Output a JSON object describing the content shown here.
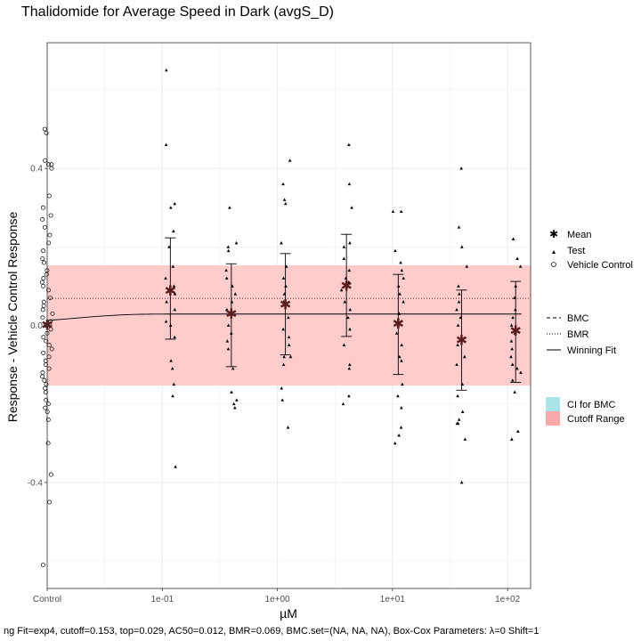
{
  "chart_data": {
    "type": "scatter",
    "title": "Thalidomide for Average Speed in Dark (avgS_D)",
    "xlabel": "µM",
    "ylabel": "Response - Vehicle Control Response",
    "ylim": [
      -0.67,
      0.72
    ],
    "x_log_range": [
      -2.0,
      2.2
    ],
    "x_ticks": [
      {
        "label": "Control",
        "log": -2.0
      },
      {
        "label": "1e-01",
        "log": -1.0
      },
      {
        "label": "1e+00",
        "log": 0.0
      },
      {
        "label": "1e+01",
        "log": 1.0
      },
      {
        "label": "1e+02",
        "log": 2.0
      }
    ],
    "y_ticks": [
      {
        "label": "-0.4",
        "value": -0.4
      },
      {
        "label": "0.0",
        "value": 0.0
      },
      {
        "label": "0.4",
        "value": 0.4
      }
    ],
    "cutoff_range": [
      -0.153,
      0.153
    ],
    "bmr": 0.069,
    "control_log": -2.0,
    "vehicle_control": [
      0.5,
      0.49,
      0.42,
      0.41,
      0.41,
      0.4,
      0.33,
      0.3,
      0.28,
      0.27,
      0.25,
      0.23,
      0.21,
      0.19,
      0.17,
      0.16,
      0.14,
      0.13,
      0.12,
      0.11,
      0.1,
      0.09,
      0.07,
      0.06,
      0.05,
      0.04,
      0.03,
      0.02,
      0.01,
      0.0,
      0.0,
      -0.01,
      -0.02,
      -0.03,
      -0.04,
      -0.05,
      -0.06,
      -0.07,
      -0.08,
      -0.09,
      -0.1,
      -0.11,
      -0.12,
      -0.13,
      -0.14,
      -0.15,
      -0.16,
      -0.17,
      -0.19,
      -0.2,
      -0.21,
      -0.22,
      -0.24,
      -0.3,
      -0.38,
      -0.45,
      -0.61
    ],
    "test_groups": [
      {
        "log": -0.93,
        "mean": 0.087,
        "err_low": -0.035,
        "err_high": 0.223,
        "values": [
          0.65,
          0.46,
          0.31,
          0.3,
          0.24,
          0.2,
          0.15,
          0.12,
          0.1,
          0.08,
          0.06,
          0.04,
          0.01,
          0.0,
          -0.03,
          -0.09,
          -0.11,
          -0.15,
          -0.18,
          -0.36
        ]
      },
      {
        "log": -0.4,
        "mean": 0.028,
        "err_low": -0.105,
        "err_high": 0.157,
        "values": [
          0.3,
          0.21,
          0.2,
          0.19,
          0.14,
          0.12,
          0.1,
          0.08,
          0.06,
          0.04,
          0.03,
          0.0,
          -0.02,
          -0.04,
          -0.06,
          -0.11,
          -0.17,
          -0.19,
          -0.2,
          -0.21
        ]
      },
      {
        "log": 0.07,
        "mean": 0.052,
        "err_low": -0.075,
        "err_high": 0.183,
        "values": [
          0.42,
          0.36,
          0.32,
          0.31,
          0.21,
          0.15,
          0.12,
          0.1,
          0.08,
          0.06,
          0.02,
          -0.01,
          -0.03,
          -0.05,
          -0.08,
          -0.08,
          -0.1,
          -0.16,
          -0.19,
          -0.26
        ]
      },
      {
        "log": 0.6,
        "mean": 0.1,
        "err_low": -0.028,
        "err_high": 0.232,
        "values": [
          0.46,
          0.36,
          0.3,
          0.21,
          0.2,
          0.17,
          0.14,
          0.12,
          0.11,
          0.09,
          0.06,
          0.04,
          0.02,
          -0.01,
          -0.05,
          -0.1,
          -0.11,
          -0.18,
          -0.2
        ]
      },
      {
        "log": 1.05,
        "mean": 0.003,
        "err_low": -0.125,
        "err_high": 0.13,
        "values": [
          0.29,
          0.29,
          0.19,
          0.16,
          0.14,
          0.12,
          0.1,
          0.08,
          0.06,
          0.03,
          0.0,
          -0.02,
          -0.05,
          -0.08,
          -0.09,
          -0.15,
          -0.18,
          -0.21,
          -0.26,
          -0.28,
          -0.3
        ]
      },
      {
        "log": 1.6,
        "mean": -0.038,
        "err_low": -0.165,
        "err_high": 0.09,
        "values": [
          0.4,
          0.25,
          0.2,
          0.15,
          0.1,
          0.08,
          0.06,
          0.04,
          0.02,
          0.0,
          -0.05,
          -0.08,
          -0.1,
          -0.15,
          -0.18,
          -0.22,
          -0.24,
          -0.25,
          -0.25,
          -0.29,
          -0.4
        ]
      },
      {
        "log": 2.07,
        "mean": -0.015,
        "err_low": -0.145,
        "err_high": 0.112,
        "values": [
          0.22,
          0.17,
          0.15,
          0.1,
          0.07,
          0.04,
          0.02,
          0.0,
          -0.02,
          -0.04,
          -0.06,
          -0.08,
          -0.1,
          -0.1,
          -0.11,
          -0.12,
          -0.14,
          -0.17,
          -0.27,
          -0.29
        ]
      }
    ],
    "fit": {
      "model": "exp4",
      "top": 0.029,
      "ac50": 0.012
    },
    "legend": {
      "points": [
        "Mean",
        "Test",
        "Vehicle Control"
      ],
      "lines": [
        "BMC",
        "BMR",
        "Winning Fit"
      ],
      "fills": [
        "CI for BMC",
        "Cutoff Range"
      ],
      "placement": "right"
    },
    "colors": {
      "cutoff": "#ffcccc",
      "cutoff_legend": "#f8a8a8",
      "ci": "#a8e4e8",
      "grid": "#ebebeb",
      "mean": "#5a1e1e"
    },
    "caption": "ng Fit=exp4, cutoff=0.153, top=0.029, AC50=0.012, BMR=0.069, BMC.set=(NA, NA, NA), Box-Cox Parameters: λ=0 Shift=1"
  }
}
